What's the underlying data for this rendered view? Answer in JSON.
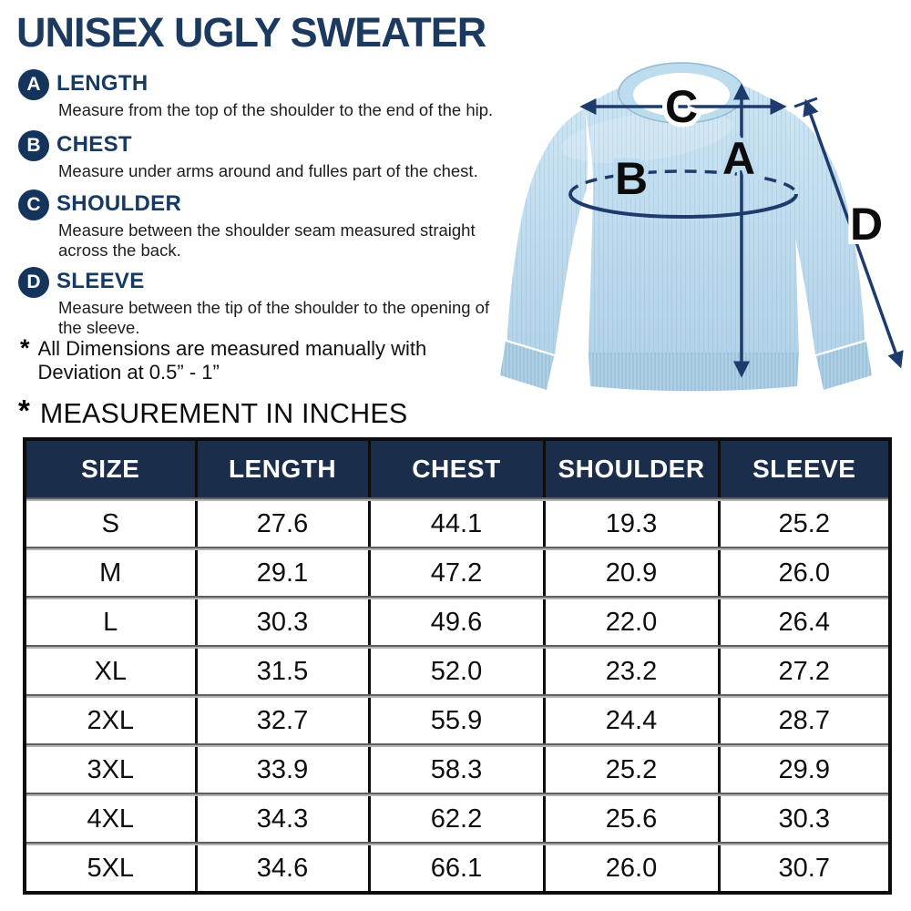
{
  "page": {
    "title": "UNISEX UGLY SWEATER",
    "accent_navy": "#1c3a5f",
    "background": "#ffffff"
  },
  "instructions": {
    "items": [
      {
        "letter": "A",
        "label": "LENGTH",
        "description": "Measure from the top of the shoulder to the end of the hip."
      },
      {
        "letter": "B",
        "label": "CHEST",
        "description": "Measure under arms around and fulles part of the chest."
      },
      {
        "letter": "C",
        "label": "SHOULDER",
        "description": "Measure between the shoulder seam measured straight across the back."
      },
      {
        "letter": "D",
        "label": "SLEEVE",
        "description": "Measure between the tip of the shoulder to the opening of the sleeve."
      }
    ]
  },
  "notes": {
    "deviation_prefix": "*",
    "deviation_line1": "All Dimensions are measured manually with",
    "deviation_line2": "Deviation at 0.5” - 1”",
    "units_prefix": "*",
    "units_text": "MEASUREMENT IN INCHES"
  },
  "diagram": {
    "labels": {
      "length": "A",
      "chest": "B",
      "shoulder": "C",
      "sleeve": "D"
    },
    "sweater_color": "#bdd9ec",
    "arrow_color": "#1d3c6d"
  },
  "table": {
    "headers": [
      "SIZE",
      "LENGTH",
      "CHEST",
      "SHOULDER",
      "SLEEVE"
    ],
    "header_bg": "#1a2e4c",
    "header_text_color": "#ffffff",
    "rows": [
      {
        "size": "S",
        "values": [
          "27.6",
          "44.1",
          "19.3",
          "25.2"
        ]
      },
      {
        "size": "M",
        "values": [
          "29.1",
          "47.2",
          "20.9",
          "26.0"
        ]
      },
      {
        "size": "L",
        "values": [
          "30.3",
          "49.6",
          "22.0",
          "26.4"
        ]
      },
      {
        "size": "XL",
        "values": [
          "31.5",
          "52.0",
          "23.2",
          "27.2"
        ]
      },
      {
        "size": "2XL",
        "values": [
          "32.7",
          "55.9",
          "24.4",
          "28.7"
        ]
      },
      {
        "size": "3XL",
        "values": [
          "33.9",
          "58.3",
          "25.2",
          "29.9"
        ]
      },
      {
        "size": "4XL",
        "values": [
          "34.3",
          "62.2",
          "25.6",
          "30.3"
        ]
      },
      {
        "size": "5XL",
        "values": [
          "34.6",
          "66.1",
          "26.0",
          "30.7"
        ]
      }
    ]
  }
}
